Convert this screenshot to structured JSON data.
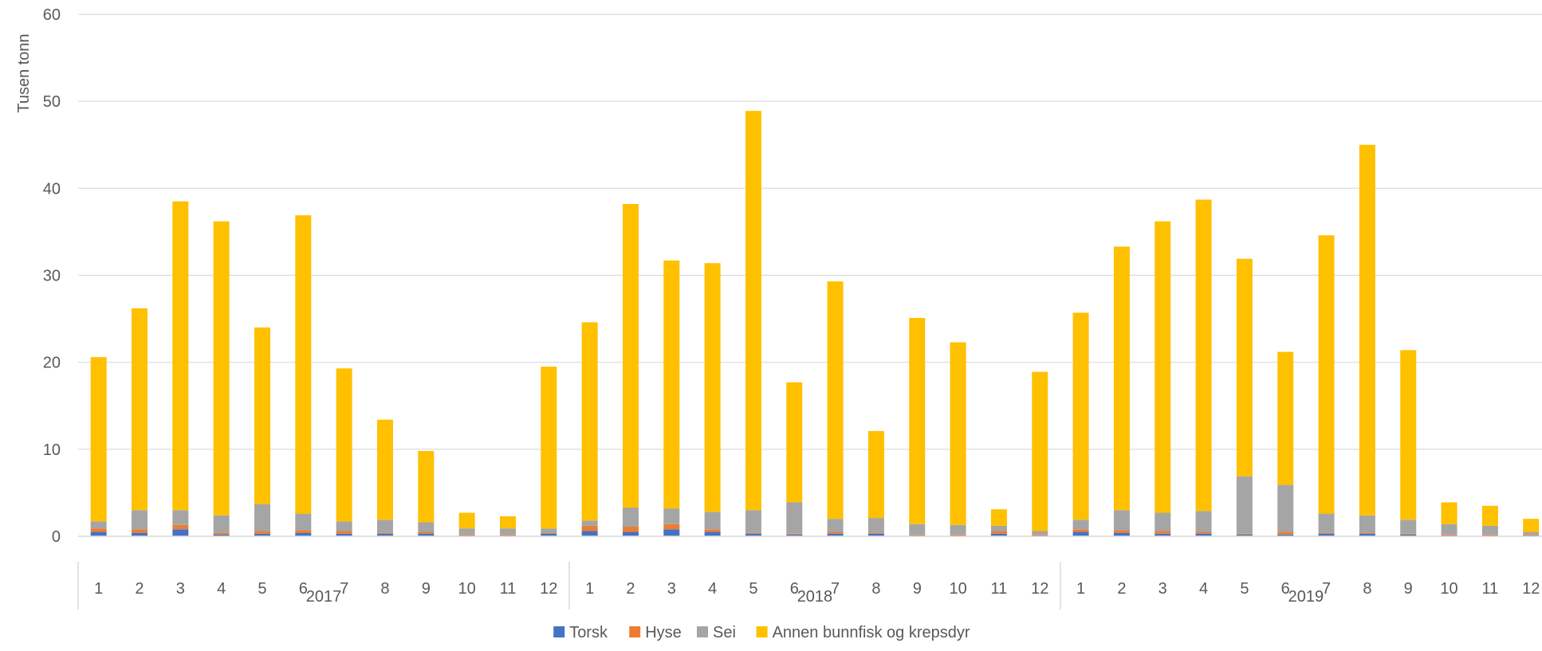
{
  "chart_data": {
    "type": "bar",
    "stacked": true,
    "ylabel": "Tusen tonn",
    "ylim": [
      0,
      60
    ],
    "yticks": [
      0,
      10,
      20,
      30,
      40,
      50,
      60
    ],
    "grid": true,
    "legend_position": "bottom",
    "groups": [
      {
        "label": "2017",
        "categories": [
          "1",
          "2",
          "3",
          "4",
          "5",
          "6",
          "7",
          "8",
          "9",
          "10",
          "11",
          "12"
        ]
      },
      {
        "label": "2018",
        "categories": [
          "1",
          "2",
          "3",
          "4",
          "5",
          "6",
          "7",
          "8",
          "9",
          "10",
          "11",
          "12"
        ]
      },
      {
        "label": "2019",
        "categories": [
          "1",
          "2",
          "3",
          "4",
          "5",
          "6",
          "7",
          "8",
          "9",
          "10",
          "11",
          "12"
        ]
      }
    ],
    "series": [
      {
        "name": "Torsk",
        "color": "#4472C4",
        "values": [
          0.5,
          0.4,
          0.8,
          0.2,
          0.3,
          0.4,
          0.3,
          0.3,
          0.3,
          0.1,
          0.1,
          0.3,
          0.6,
          0.5,
          0.8,
          0.5,
          0.3,
          0.2,
          0.3,
          0.3,
          0.1,
          0.1,
          0.3,
          0.1,
          0.5,
          0.4,
          0.3,
          0.3,
          0.2,
          0.2,
          0.3,
          0.3,
          0.2,
          0.1,
          0.1,
          0.1
        ]
      },
      {
        "name": "Hyse",
        "color": "#ED7D31",
        "values": [
          0.4,
          0.4,
          0.5,
          0.2,
          0.3,
          0.3,
          0.3,
          0.1,
          0.2,
          0.1,
          0.1,
          0.1,
          0.6,
          0.6,
          0.6,
          0.3,
          0.1,
          0.1,
          0.2,
          0.1,
          0.1,
          0.1,
          0.3,
          0.1,
          0.3,
          0.3,
          0.3,
          0.2,
          0.1,
          0.3,
          0.1,
          0.1,
          0.1,
          0.1,
          0.1,
          0.1
        ]
      },
      {
        "name": "Sei",
        "color": "#A5A5A5",
        "values": [
          0.8,
          2.2,
          1.7,
          2.0,
          3.1,
          1.9,
          1.1,
          1.5,
          1.1,
          0.7,
          0.7,
          0.5,
          0.6,
          2.2,
          1.8,
          2.0,
          2.6,
          3.6,
          1.5,
          1.7,
          1.2,
          1.1,
          0.6,
          0.4,
          1.1,
          2.3,
          2.1,
          2.4,
          6.6,
          5.4,
          2.2,
          2.0,
          1.6,
          1.2,
          1.0,
          0.3
        ]
      },
      {
        "name": "Annen bunnfisk og krepsdyr",
        "color": "#FFC000",
        "values": [
          18.9,
          23.2,
          35.5,
          33.8,
          20.3,
          34.3,
          17.6,
          11.5,
          8.2,
          1.8,
          1.4,
          18.6,
          22.8,
          34.9,
          28.5,
          28.6,
          45.9,
          13.8,
          27.3,
          10.0,
          23.7,
          21.0,
          1.9,
          18.3,
          23.8,
          30.3,
          33.5,
          35.8,
          25.0,
          15.3,
          32.0,
          42.6,
          19.5,
          2.5,
          2.3,
          1.5
        ]
      }
    ]
  }
}
